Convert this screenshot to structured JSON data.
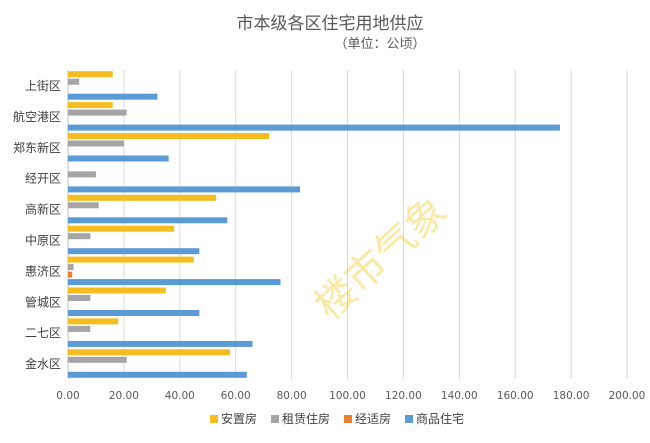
{
  "chart_data": {
    "type": "bar",
    "orientation": "horizontal",
    "title": "市本级各区住宅用地供应",
    "subtitle": "（单位：公顷）",
    "xlabel": "",
    "ylabel": "",
    "xlim": [
      0,
      200
    ],
    "xticks": [
      "0.00",
      "20.00",
      "40.00",
      "60.00",
      "80.00",
      "100.00",
      "120.00",
      "140.00",
      "160.00",
      "180.00",
      "200.00"
    ],
    "grid": true,
    "legend_position": "bottom",
    "watermark": "楼市气象",
    "categories": [
      "上街区",
      "航空港区",
      "郑东新区",
      "经开区",
      "高新区",
      "中原区",
      "惠济区",
      "管城区",
      "二七区",
      "金水区"
    ],
    "series": [
      {
        "name": "安置房",
        "color": "#F5BD1F",
        "values": [
          16,
          16,
          72,
          0,
          53,
          38,
          45,
          35,
          18,
          58
        ]
      },
      {
        "name": "租赁住房",
        "color": "#A5A5A5",
        "values": [
          4,
          21,
          20,
          10,
          11,
          8,
          2,
          8,
          8,
          21
        ]
      },
      {
        "name": "经适房",
        "color": "#ED7D31",
        "values": [
          0,
          0,
          0,
          0,
          0,
          0,
          1.5,
          0,
          0,
          0
        ]
      },
      {
        "name": "商品住宅",
        "color": "#5B9BD5",
        "values": [
          32,
          176,
          36,
          83,
          57,
          47,
          76,
          47,
          66,
          64
        ]
      }
    ]
  }
}
